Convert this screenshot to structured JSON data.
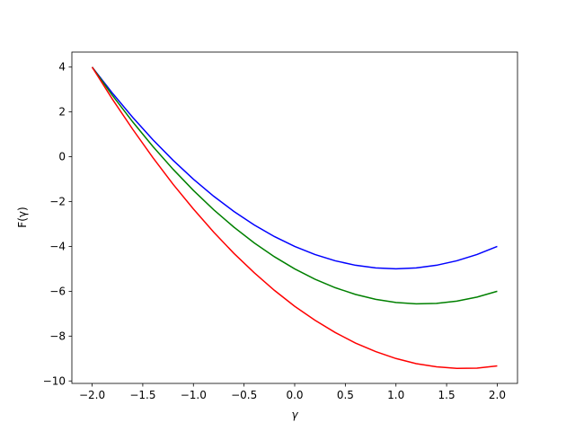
{
  "chart_data": {
    "type": "line",
    "xlabel": "γ",
    "ylabel": "F(γ)",
    "x": [
      -2,
      -1.8,
      -1.6,
      -1.4,
      -1.2,
      -1,
      -0.8,
      -0.6,
      -0.4,
      -0.2,
      0,
      0.2,
      0.4,
      0.6,
      0.8,
      1,
      1.2,
      1.4,
      1.6,
      1.8,
      2
    ],
    "series": [
      {
        "color": "#0000ff",
        "values": [
          4,
          2.84,
          1.76,
          0.76,
          -0.16,
          -1,
          -1.76,
          -2.44,
          -3.04,
          -3.56,
          -4,
          -4.36,
          -4.64,
          -4.84,
          -4.96,
          -5,
          -4.96,
          -4.84,
          -4.64,
          -4.36,
          -4
        ]
      },
      {
        "color": "#008000",
        "values": [
          4,
          2.74,
          1.56,
          0.46,
          -0.56,
          -1.5,
          -2.36,
          -3.14,
          -3.84,
          -4.46,
          -5,
          -5.46,
          -5.84,
          -6.14,
          -6.36,
          -6.5,
          -6.56,
          -6.54,
          -6.44,
          -6.26,
          -6
        ]
      },
      {
        "color": "#ff0000",
        "values": [
          4,
          2.57,
          1.23,
          -0.04,
          -1.23,
          -2.33,
          -3.36,
          -4.31,
          -5.17,
          -5.96,
          -6.67,
          -7.29,
          -7.84,
          -8.31,
          -8.69,
          -9,
          -9.23,
          -9.37,
          -9.44,
          -9.43,
          -9.33
        ]
      }
    ],
    "xlim": [
      -2.2,
      2.2
    ],
    "ylim": [
      -10.11,
      4.67
    ],
    "xticks": [
      {
        "value": -2,
        "label": "−2.0"
      },
      {
        "value": -1.5,
        "label": "−1.5"
      },
      {
        "value": -1,
        "label": "−1.0"
      },
      {
        "value": -0.5,
        "label": "−0.5"
      },
      {
        "value": 0,
        "label": "0.0"
      },
      0.5,
      {
        "value": 1,
        "label": "1.0"
      },
      1.5,
      {
        "value": 2,
        "label": "2.0"
      }
    ],
    "yticks": [
      {
        "value": -10,
        "label": "−10"
      },
      {
        "value": -8,
        "label": "−8"
      },
      {
        "value": -6,
        "label": "−6"
      },
      {
        "value": -4,
        "label": "−4"
      },
      {
        "value": -2,
        "label": "−2"
      },
      0,
      2,
      4
    ],
    "grid": false
  }
}
